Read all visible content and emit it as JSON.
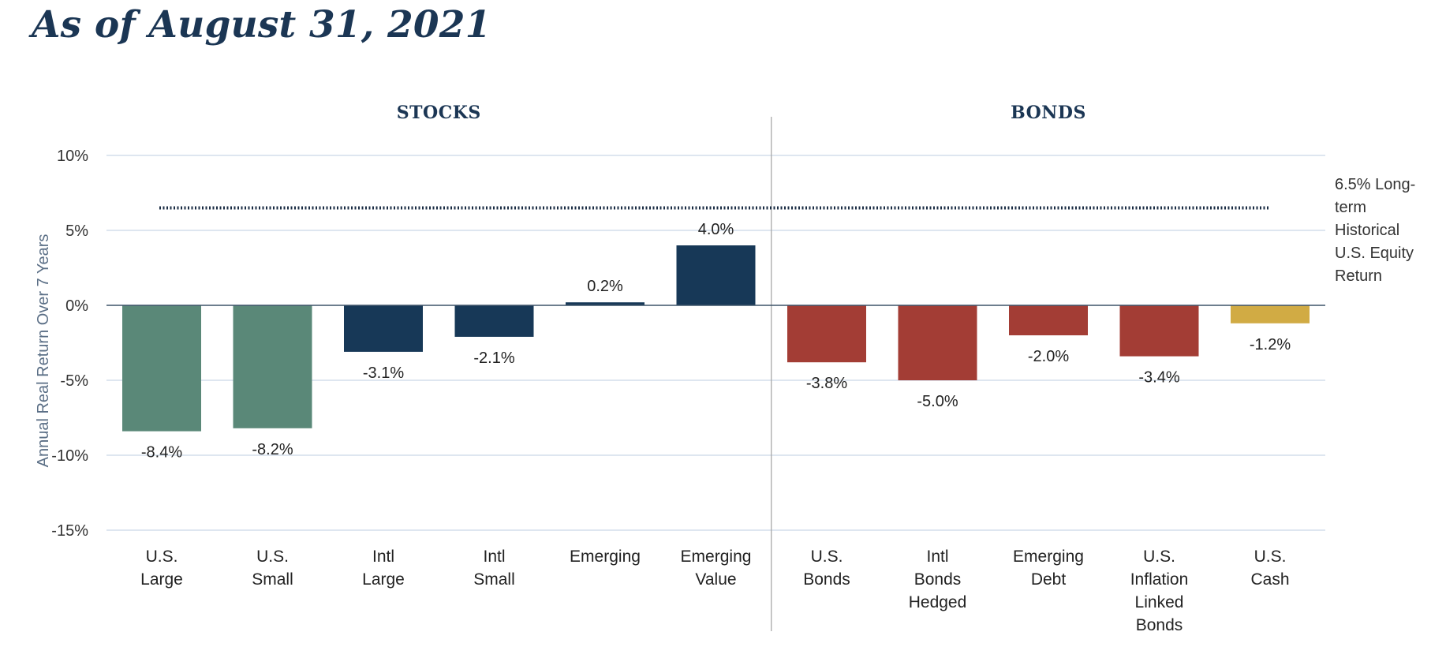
{
  "title": "As of August 31, 2021",
  "chart_data": {
    "type": "bar",
    "ylabel": "Annual Real Return Over 7 Years",
    "ylim": [
      -15,
      10
    ],
    "yticks": [
      10,
      5,
      0,
      -5,
      -10,
      -15
    ],
    "ytick_labels": [
      "10%",
      "5%",
      "0%",
      "-5%",
      "-10%",
      "-15%"
    ],
    "grid": true,
    "sections": [
      {
        "name": "STOCKS",
        "start": 0,
        "end": 5
      },
      {
        "name": "BONDS",
        "start": 6,
        "end": 10
      }
    ],
    "categories": [
      [
        "U.S.",
        "Large"
      ],
      [
        "U.S.",
        "Small"
      ],
      [
        "Intl",
        "Large"
      ],
      [
        "Intl",
        "Small"
      ],
      [
        "Emerging"
      ],
      [
        "Emerging",
        "Value"
      ],
      [
        "U.S.",
        "Bonds"
      ],
      [
        "Intl",
        "Bonds",
        "Hedged"
      ],
      [
        "Emerging",
        "Debt"
      ],
      [
        "U.S.",
        "Inflation",
        "Linked",
        "Bonds"
      ],
      [
        "U.S.",
        "Cash"
      ]
    ],
    "values": [
      -8.4,
      -8.2,
      -3.1,
      -2.1,
      0.2,
      4.0,
      -3.8,
      -5.0,
      -2.0,
      -3.4,
      -1.2
    ],
    "value_labels": [
      "-8.4%",
      "-8.2%",
      "-3.1%",
      "-2.1%",
      "0.2%",
      "4.0%",
      "-3.8%",
      "-5.0%",
      "-2.0%",
      "-3.4%",
      "-1.2%"
    ],
    "colors": [
      "#5a8878",
      "#5a8878",
      "#173857",
      "#173857",
      "#173857",
      "#173857",
      "#a33d35",
      "#a33d35",
      "#a33d35",
      "#a33d35",
      "#d1ab44"
    ],
    "reference_line": {
      "value": 6.5,
      "label_lines": [
        "6.5% Long-",
        "term",
        "Historical",
        "U.S. Equity",
        "Return"
      ],
      "style": "dotted"
    }
  }
}
